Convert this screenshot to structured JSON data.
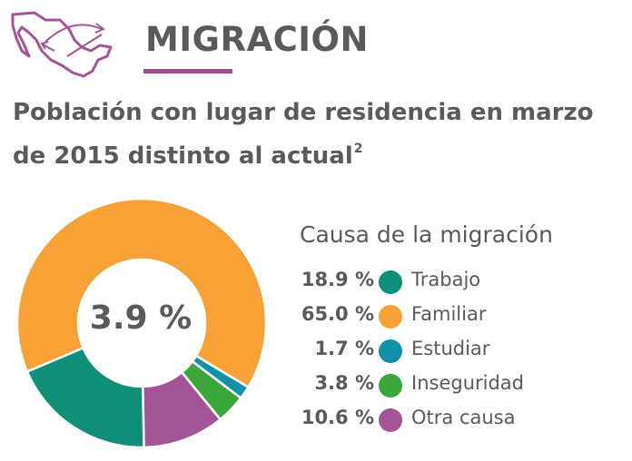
{
  "header": {
    "title": "MIGRACIÓN",
    "map_icon": "mexico-map-icon"
  },
  "colors": {
    "text": "#5a5a5a",
    "accent": "#9c4f92",
    "trabajo": "#0f8f78",
    "familiar": "#f7a136",
    "estudiar": "#1392a7",
    "inseguridad": "#3aa63c",
    "otra": "#a45597"
  },
  "chart_data": {
    "type": "pie",
    "title": "Población con lugar de residencia en marzo de 2015 distinto al actual",
    "title_footnote": "2",
    "center_label": "3.9 %",
    "legend_title": "Causa de la migración",
    "categories": [
      "Trabajo",
      "Familiar",
      "Estudiar",
      "Inseguridad",
      "Otra causa"
    ],
    "values": [
      18.9,
      65.0,
      1.7,
      3.8,
      10.6
    ],
    "value_labels": [
      "18.9 %",
      "65.0 %",
      "1.7 %",
      "3.8 %",
      "10.6 %"
    ],
    "colors": [
      "#0f8f78",
      "#f7a136",
      "#1392a7",
      "#3aa63c",
      "#a45597"
    ]
  }
}
